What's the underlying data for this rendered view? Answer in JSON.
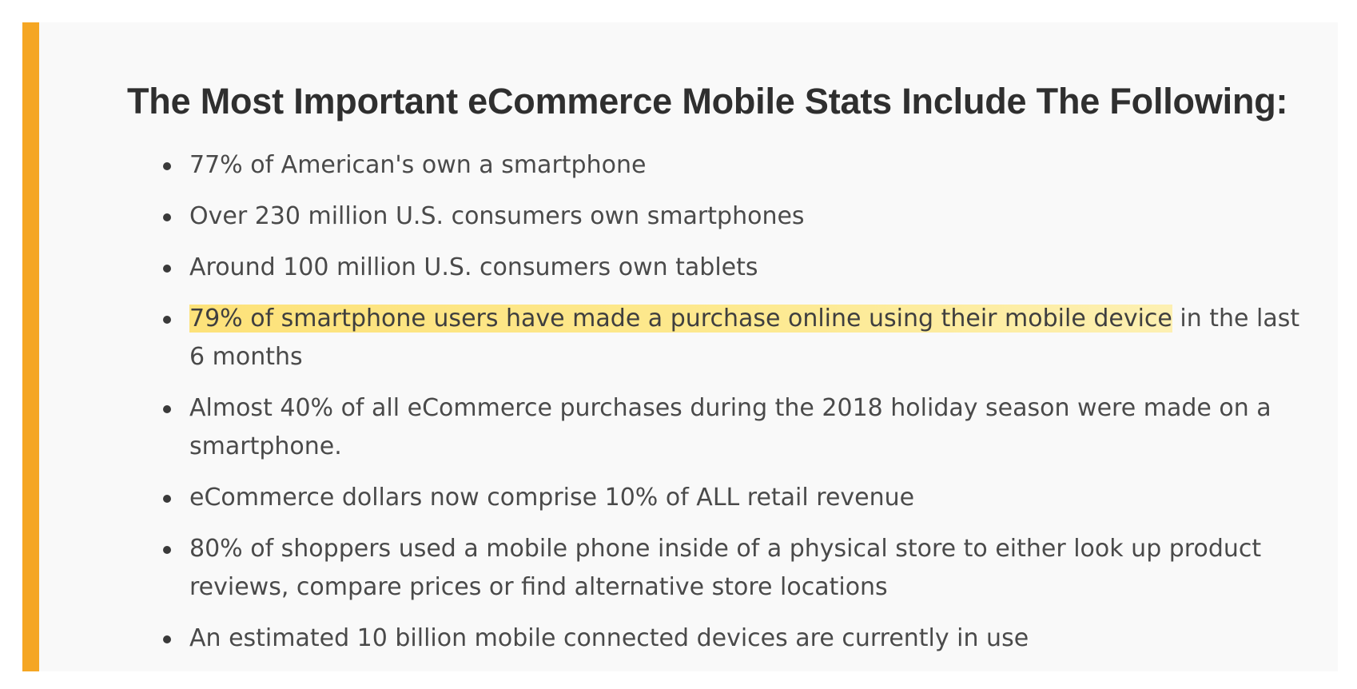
{
  "heading": "The Most Important eCommerce Mobile Stats Include The Following:",
  "colors": {
    "accent_bar": "#f5a623",
    "highlight": "#fde27a",
    "panel_background": "#f9f9f9",
    "text": "#4a4a4a",
    "heading_text": "#2f2f2f"
  },
  "stats": [
    {
      "text": "77% of American's own a smartphone"
    },
    {
      "text": "Over 230 million U.S. consumers own smartphones"
    },
    {
      "text": "Around 100 million U.S. consumers own tablets"
    },
    {
      "highlighted": "79% of smartphone users have made a purchase online using their mobile device",
      "rest": " in the last 6 months"
    },
    {
      "text": "Almost 40% of all eCommerce purchases during the 2018 holiday season were made on a smartphone."
    },
    {
      "text": "eCommerce dollars now comprise 10% of ALL retail revenue"
    },
    {
      "text": "80% of shoppers used a mobile phone inside of a physical store to either look up product reviews, compare prices or find alternative store locations"
    },
    {
      "text": "An estimated 10 billion mobile connected devices are currently in use"
    }
  ]
}
